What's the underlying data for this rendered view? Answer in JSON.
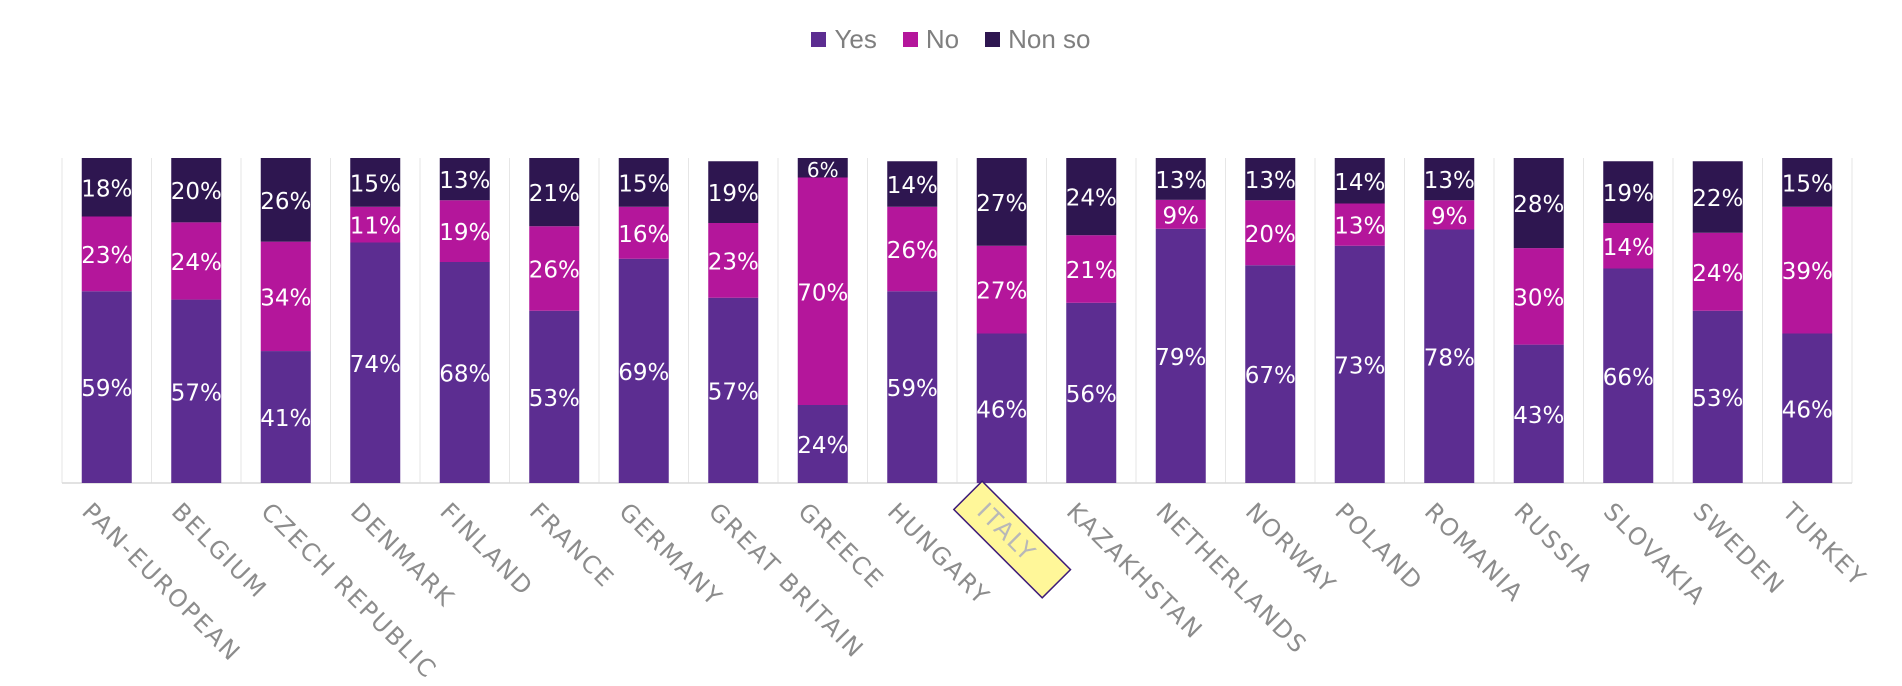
{
  "chart_data": {
    "type": "bar",
    "stacked": true,
    "percent": true,
    "categories": [
      "PAN-EUROPEAN",
      "BELGIUM",
      "CZECH REPUBLIC",
      "DENMARK",
      "FINLAND",
      "FRANCE",
      "GERMANY",
      "GREAT BRITAIN",
      "GREECE",
      "HUNGARY",
      "ITALY",
      "KAZAKHSTAN",
      "NETHERLANDS",
      "NORWAY",
      "POLAND",
      "ROMANIA",
      "RUSSIA",
      "SLOVAKIA",
      "SWEDEN",
      "TURKEY"
    ],
    "series": [
      {
        "name": "Yes",
        "color": "#5c2d91",
        "values": [
          59,
          57,
          41,
          74,
          68,
          53,
          69,
          57,
          24,
          59,
          46,
          56,
          79,
          67,
          73,
          78,
          43,
          66,
          53,
          46
        ]
      },
      {
        "name": "No",
        "color": "#b4169b",
        "values": [
          23,
          24,
          34,
          11,
          19,
          26,
          16,
          23,
          70,
          26,
          27,
          21,
          9,
          20,
          13,
          9,
          30,
          14,
          24,
          39
        ]
      },
      {
        "name": "Non so",
        "color": "#2e1650",
        "values": [
          18,
          20,
          26,
          15,
          13,
          21,
          15,
          19,
          6,
          14,
          27,
          24,
          13,
          13,
          14,
          13,
          28,
          19,
          22,
          15
        ]
      }
    ],
    "ylim": [
      0,
      100
    ],
    "label_suffix": "%",
    "legend_position": "top-center",
    "highlighted_category": "ITALY",
    "highlight_color": "#fff799",
    "highlight_border": "#3d1a78",
    "tick_label_color": "#8c8c8c",
    "value_label_color": "#ffffff"
  }
}
